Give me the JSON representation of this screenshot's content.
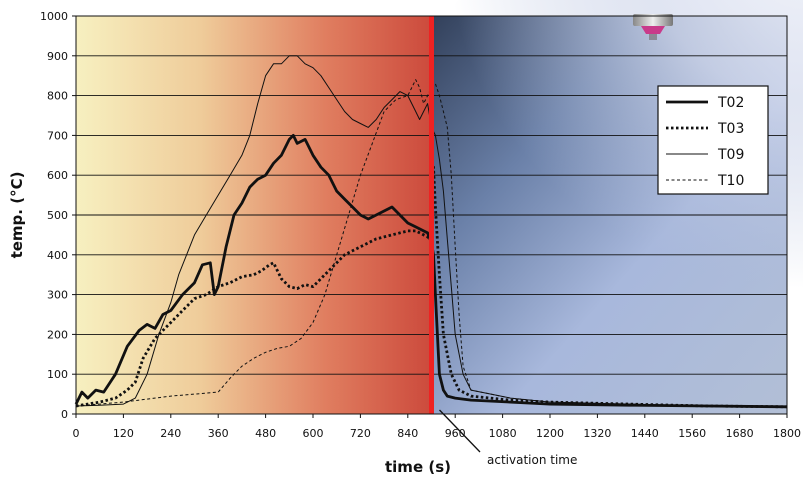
{
  "chart_data": {
    "type": "line",
    "title": "",
    "xlabel": "time (s)",
    "ylabel": "temp. (°C)",
    "xlim": [
      0,
      1800
    ],
    "ylim": [
      0,
      1000
    ],
    "x_ticks": [
      0,
      120,
      240,
      360,
      480,
      600,
      720,
      840,
      960,
      1080,
      1200,
      1320,
      1440,
      1560,
      1680,
      1800
    ],
    "y_ticks": [
      0,
      100,
      200,
      300,
      400,
      500,
      600,
      700,
      800,
      900,
      1000
    ],
    "grid": "horizontal",
    "legend": "top-right",
    "background": "fire-to-water gradient with sprinkler photo after activation",
    "activation_time": 900,
    "annotation": {
      "text": "activation time",
      "x": 900
    },
    "series": [
      {
        "name": "T02",
        "style": "thick-solid",
        "x": [
          0,
          15,
          30,
          50,
          70,
          100,
          130,
          160,
          180,
          200,
          220,
          240,
          270,
          300,
          320,
          340,
          350,
          360,
          380,
          400,
          420,
          440,
          460,
          480,
          500,
          510,
          520,
          540,
          550,
          560,
          580,
          600,
          620,
          640,
          660,
          680,
          700,
          720,
          740,
          760,
          780,
          800,
          820,
          840,
          860,
          880,
          890,
          900,
          905,
          910,
          915,
          920,
          930,
          940,
          960,
          1000,
          1100,
          1200,
          1400,
          1600,
          1800
        ],
        "y": [
          25,
          55,
          40,
          60,
          55,
          100,
          170,
          210,
          225,
          215,
          250,
          260,
          300,
          330,
          375,
          380,
          300,
          320,
          420,
          500,
          530,
          570,
          590,
          600,
          630,
          640,
          650,
          690,
          700,
          680,
          690,
          650,
          620,
          600,
          560,
          540,
          520,
          500,
          490,
          500,
          510,
          520,
          500,
          480,
          470,
          460,
          455,
          430,
          400,
          300,
          200,
          100,
          60,
          45,
          40,
          35,
          30,
          25,
          22,
          20,
          18
        ]
      },
      {
        "name": "T03",
        "style": "thick-dotted",
        "x": [
          0,
          60,
          100,
          130,
          150,
          170,
          200,
          240,
          270,
          300,
          330,
          360,
          390,
          420,
          450,
          470,
          490,
          500,
          520,
          540,
          560,
          580,
          600,
          620,
          640,
          660,
          680,
          700,
          720,
          740,
          760,
          780,
          800,
          820,
          840,
          860,
          880,
          890,
          895,
          900,
          905,
          910,
          920,
          930,
          950,
          970,
          1000,
          1100,
          1200,
          1400,
          1600,
          1800
        ],
        "y": [
          20,
          30,
          40,
          60,
          80,
          140,
          190,
          230,
          260,
          290,
          300,
          320,
          330,
          345,
          350,
          360,
          375,
          380,
          340,
          320,
          315,
          325,
          320,
          340,
          360,
          380,
          400,
          410,
          420,
          430,
          440,
          445,
          450,
          455,
          460,
          460,
          450,
          445,
          440,
          450,
          620,
          520,
          350,
          200,
          100,
          60,
          45,
          35,
          30,
          25,
          20,
          18
        ]
      },
      {
        "name": "T09",
        "style": "thin-solid",
        "x": [
          0,
          60,
          120,
          150,
          180,
          210,
          240,
          260,
          280,
          300,
          330,
          360,
          390,
          420,
          440,
          460,
          480,
          500,
          520,
          540,
          560,
          580,
          600,
          620,
          640,
          660,
          680,
          700,
          720,
          740,
          760,
          780,
          800,
          820,
          840,
          860,
          870,
          880,
          890,
          900,
          910,
          920,
          930,
          940,
          950,
          960,
          980,
          1000,
          1100,
          1200,
          1400,
          1600,
          1800
        ],
        "y": [
          20,
          22,
          25,
          40,
          100,
          200,
          280,
          350,
          400,
          450,
          500,
          550,
          600,
          650,
          700,
          780,
          850,
          880,
          880,
          900,
          900,
          880,
          870,
          850,
          820,
          790,
          760,
          740,
          730,
          720,
          740,
          770,
          790,
          810,
          800,
          760,
          740,
          760,
          780,
          720,
          700,
          640,
          560,
          440,
          320,
          200,
          100,
          60,
          40,
          30,
          25,
          20,
          18
        ]
      },
      {
        "name": "T10",
        "style": "thin-dashed",
        "x": [
          0,
          120,
          240,
          300,
          360,
          390,
          420,
          450,
          480,
          510,
          540,
          570,
          600,
          630,
          660,
          690,
          720,
          750,
          780,
          810,
          840,
          860,
          870,
          880,
          890,
          900,
          910,
          920,
          930,
          940,
          950,
          960,
          970,
          980,
          1000,
          1100,
          1200,
          1400,
          1600,
          1800
        ],
        "y": [
          20,
          30,
          45,
          50,
          55,
          90,
          120,
          140,
          155,
          165,
          170,
          190,
          230,
          300,
          400,
          500,
          600,
          680,
          760,
          790,
          800,
          840,
          820,
          780,
          800,
          820,
          830,
          800,
          760,
          720,
          600,
          420,
          250,
          120,
          60,
          40,
          30,
          25,
          20,
          18
        ]
      }
    ]
  }
}
